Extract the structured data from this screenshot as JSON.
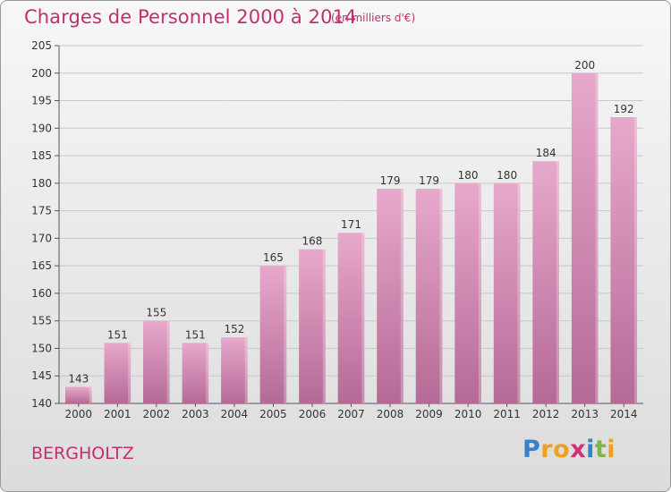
{
  "title": "Charges de Personnel 2000 à 2014",
  "subtitle": "(en milliers d'€)",
  "commune": "BERGHOLTZ",
  "logo": {
    "text": "Proxiti",
    "letters": [
      {
        "char": "P",
        "color": "#3a7fc8"
      },
      {
        "char": "r",
        "color": "#f0a020"
      },
      {
        "char": "o",
        "color": "#f0a020"
      },
      {
        "char": "x",
        "color": "#d0317a"
      },
      {
        "char": "i",
        "color": "#3a7fc8"
      },
      {
        "char": "t",
        "color": "#7ab648"
      },
      {
        "char": "i",
        "color": "#f0a020"
      }
    ]
  },
  "colors": {
    "text": "#c0306e",
    "bar_light": "#e8a8cc",
    "bar_dark": "#b86a98"
  },
  "chart_data": {
    "type": "bar",
    "categories": [
      "2000",
      "2001",
      "2002",
      "2003",
      "2004",
      "2005",
      "2006",
      "2007",
      "2008",
      "2009",
      "2010",
      "2011",
      "2012",
      "2013",
      "2014"
    ],
    "values": [
      143,
      151,
      155,
      151,
      152,
      165,
      168,
      171,
      179,
      179,
      180,
      180,
      184,
      200,
      192
    ],
    "title": "Charges de Personnel 2000 à 2014",
    "xlabel": "",
    "ylabel": "",
    "ylim": [
      140,
      205
    ],
    "yticks": [
      140,
      145,
      150,
      155,
      160,
      165,
      170,
      175,
      180,
      185,
      190,
      195,
      200,
      205
    ],
    "grid": true,
    "data_labels": true
  }
}
